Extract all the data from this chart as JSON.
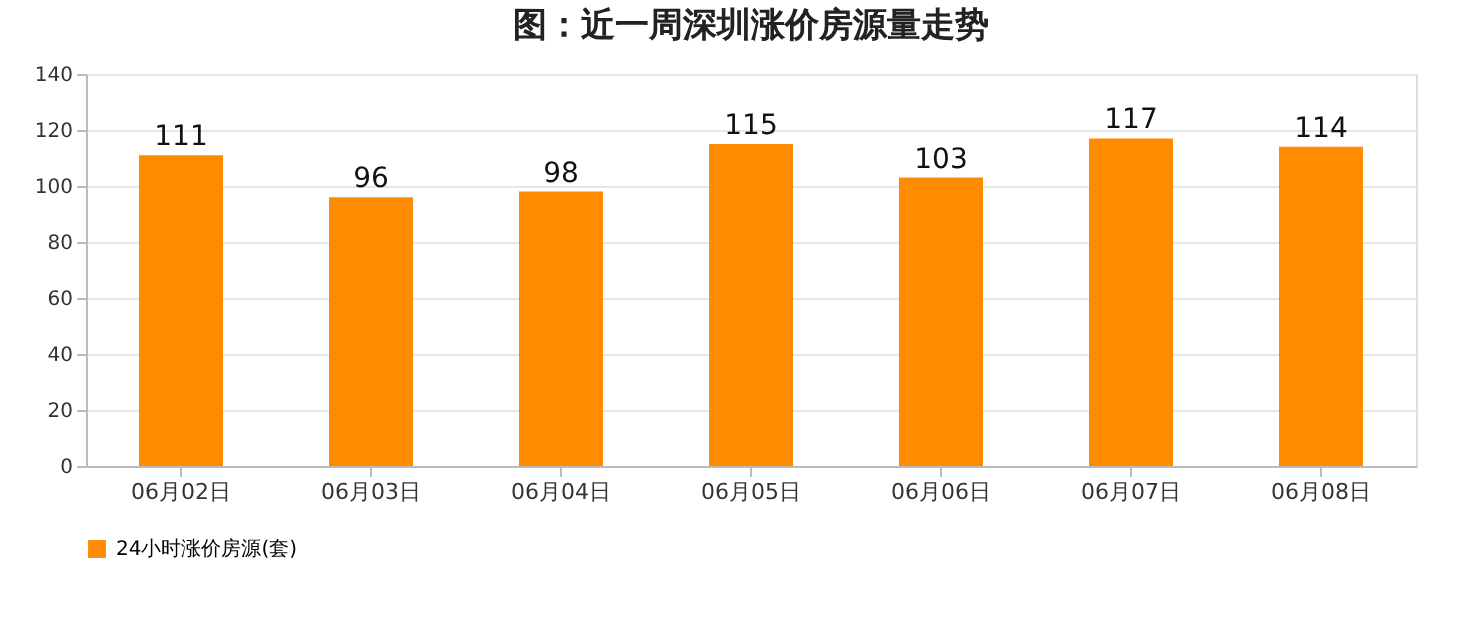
{
  "chart_data": {
    "type": "bar",
    "title": "图：近一周深圳涨价房源量走势",
    "categories": [
      "06月02日",
      "06月03日",
      "06月04日",
      "06月05日",
      "06月06日",
      "06月07日",
      "06月08日"
    ],
    "series": [
      {
        "name": "24小时涨价房源(套)",
        "color": "#ff8c00",
        "values": [
          111,
          96,
          98,
          115,
          103,
          117,
          114
        ]
      }
    ],
    "ylim": [
      0,
      140
    ],
    "yticks": [
      0,
      20,
      40,
      60,
      80,
      100,
      120,
      140
    ],
    "grid": "y",
    "legend": "bottom",
    "data_labels": true
  }
}
